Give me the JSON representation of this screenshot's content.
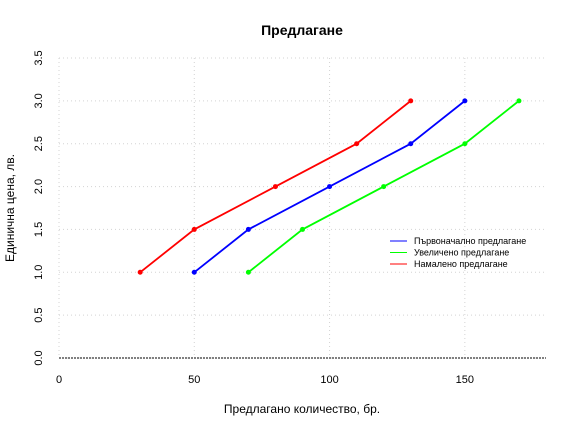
{
  "chart_data": {
    "type": "line",
    "title": "Предлагане",
    "xlabel": "Предлагано количество, бр.",
    "ylabel": "Единична цена, лв.",
    "xlim": [
      0,
      180
    ],
    "ylim": [
      0,
      3.5
    ],
    "x_ticks": [
      "0",
      "50",
      "100",
      "150"
    ],
    "x_tick_values": [
      0,
      50,
      100,
      150
    ],
    "y_ticks": [
      "0.0",
      "0.5",
      "1.0",
      "1.5",
      "2.0",
      "2.5",
      "3.0",
      "3.5"
    ],
    "y_tick_values": [
      0,
      0.5,
      1.0,
      1.5,
      2.0,
      2.5,
      3.0,
      3.5
    ],
    "grid": true,
    "legend_position": "right",
    "series": [
      {
        "name": "Първоначално предлагане",
        "color": "#0000ff",
        "points": [
          [
            50,
            1.0
          ],
          [
            70,
            1.5
          ],
          [
            100,
            2.0
          ],
          [
            130,
            2.5
          ],
          [
            150,
            3.0
          ]
        ]
      },
      {
        "name": "Увеличено предлагане",
        "color": "#00ff00",
        "points": [
          [
            70,
            1.0
          ],
          [
            90,
            1.5
          ],
          [
            120,
            2.0
          ],
          [
            150,
            2.5
          ],
          [
            170,
            3.0
          ]
        ]
      },
      {
        "name": "Намалено предлагане",
        "color": "#ff0000",
        "points": [
          [
            30,
            1.0
          ],
          [
            50,
            1.5
          ],
          [
            80,
            2.0
          ],
          [
            110,
            2.5
          ],
          [
            130,
            3.0
          ]
        ]
      }
    ]
  }
}
